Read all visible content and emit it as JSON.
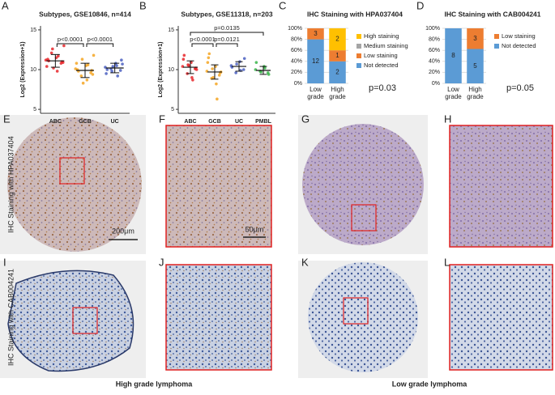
{
  "chart_data": [
    {
      "type": "dotplot",
      "panel": "A",
      "title": "Subtypes, GSE10846, n=414",
      "y_label": "Log2 (Expression+1)",
      "ylim": [
        4.5,
        15.5
      ],
      "yticks": [
        5,
        10,
        15
      ],
      "series": [
        {
          "name": "ABC",
          "color": "#e8262a",
          "mean": 11.1,
          "sd": 0.8,
          "values": [
            11.2,
            10.8,
            11.5,
            12.1,
            10.4,
            11.0,
            9.8,
            12.6,
            11.3,
            10.9,
            11.7,
            10.2,
            11.1,
            13.0
          ]
        },
        {
          "name": "GCB",
          "color": "#f5a623",
          "mean": 9.9,
          "sd": 0.9,
          "values": [
            10.1,
            9.6,
            10.5,
            9.2,
            10.8,
            9.9,
            8.7,
            11.3,
            10.0,
            9.4,
            10.6,
            8.3,
            9.8,
            11.8
          ]
        },
        {
          "name": "UC",
          "color": "#4a5fc1",
          "mean": 10.2,
          "sd": 0.6,
          "values": [
            10.3,
            9.9,
            10.8,
            10.1,
            9.5,
            11.2,
            10.5,
            9.8,
            10.0,
            10.7,
            9.2,
            10.4
          ]
        }
      ],
      "comparisons": [
        {
          "from": "ABC",
          "to": "GCB",
          "label": "p<0.0001"
        },
        {
          "from": "GCB",
          "to": "UC",
          "label": "p<0.0001"
        }
      ]
    },
    {
      "type": "dotplot",
      "panel": "B",
      "title": "Subtypes, GSE11318, n=203",
      "y_label": "Log2 (Expression+1)",
      "ylim": [
        4.5,
        15.5
      ],
      "yticks": [
        5,
        10,
        15
      ],
      "series": [
        {
          "name": "ABC",
          "color": "#e8262a",
          "mean": 10.3,
          "sd": 0.8,
          "values": [
            10.4,
            10.1,
            10.9,
            9.5,
            11.3,
            10.2,
            9.0,
            10.6,
            11.8,
            10.0,
            8.7,
            10.5
          ]
        },
        {
          "name": "GCB",
          "color": "#f5a623",
          "mean": 9.7,
          "sd": 0.9,
          "values": [
            9.8,
            9.3,
            10.4,
            8.9,
            10.9,
            9.6,
            8.2,
            10.1,
            11.5,
            9.7,
            6.3,
            9.0,
            12.0
          ]
        },
        {
          "name": "UC",
          "color": "#4a5fc1",
          "mean": 10.4,
          "sd": 0.6,
          "values": [
            10.5,
            10.0,
            11.0,
            9.6,
            10.3,
            11.4,
            9.9,
            10.7
          ]
        },
        {
          "name": "PMBL",
          "color": "#3ab54a",
          "mean": 9.9,
          "sd": 0.5,
          "values": [
            10.0,
            9.6,
            10.4,
            9.8,
            10.9,
            9.4,
            10.2,
            9.7
          ]
        }
      ],
      "comparisons": [
        {
          "from": "ABC",
          "to": "PMBL",
          "label": "p=0.0135"
        },
        {
          "from": "ABC",
          "to": "GCB",
          "label": "p<0.0001"
        },
        {
          "from": "GCB",
          "to": "UC",
          "label": "p=0.0121"
        }
      ]
    },
    {
      "type": "stacked_bar",
      "panel": "C",
      "title": "IHC Staining with HPA037404",
      "categories": [
        "Low grade",
        "High grade"
      ],
      "ylim": [
        0,
        100
      ],
      "yticks": [
        {
          "value": 0,
          "label": "0%"
        },
        {
          "value": 20,
          "label": "20%"
        },
        {
          "value": 40,
          "label": "40%"
        },
        {
          "value": 60,
          "label": "60%"
        },
        {
          "value": 80,
          "label": "80%"
        },
        {
          "value": 100,
          "label": "100%"
        }
      ],
      "series": [
        {
          "name": "Not detected",
          "color": "#5b9bd5",
          "values": [
            80,
            40
          ],
          "counts": [
            12,
            2
          ]
        },
        {
          "name": "Low staining",
          "color": "#ed7d31",
          "values": [
            20,
            20
          ],
          "counts": [
            3,
            1
          ]
        },
        {
          "name": "Medium staining",
          "color": "#a5a5a5",
          "values": [
            0,
            0
          ],
          "counts": [
            null,
            null
          ]
        },
        {
          "name": "High staining",
          "color": "#ffc000",
          "values": [
            0,
            40
          ],
          "counts": [
            null,
            2
          ]
        }
      ],
      "annotation": "p=0.03"
    },
    {
      "type": "stacked_bar",
      "panel": "D",
      "title": "IHC Staining with CAB004241",
      "categories": [
        "Low grade",
        "High grade"
      ],
      "ylim": [
        0,
        100
      ],
      "yticks": [
        {
          "value": 0,
          "label": "0%"
        },
        {
          "value": 20,
          "label": "20%"
        },
        {
          "value": 40,
          "label": "40%"
        },
        {
          "value": 60,
          "label": "60%"
        },
        {
          "value": 80,
          "label": "80%"
        },
        {
          "value": 100,
          "label": "100%"
        }
      ],
      "series": [
        {
          "name": "Not detected",
          "color": "#5b9bd5",
          "values": [
            100,
            62.5
          ],
          "counts": [
            8,
            5
          ]
        },
        {
          "name": "Low staining",
          "color": "#ed7d31",
          "values": [
            0,
            37.5
          ],
          "counts": [
            null,
            3
          ]
        }
      ],
      "annotation": "p=0.05"
    }
  ],
  "image_panels": [
    "E",
    "F",
    "G",
    "H",
    "I",
    "J",
    "K",
    "L"
  ],
  "row_labels": [
    "IHC Staining with HPA037404",
    "IHC Staining with CAB004241"
  ],
  "scale_bars": [
    "200μm",
    "50μm"
  ],
  "column_labels": [
    "High grade lymphoma",
    "Low grade lymphoma"
  ]
}
